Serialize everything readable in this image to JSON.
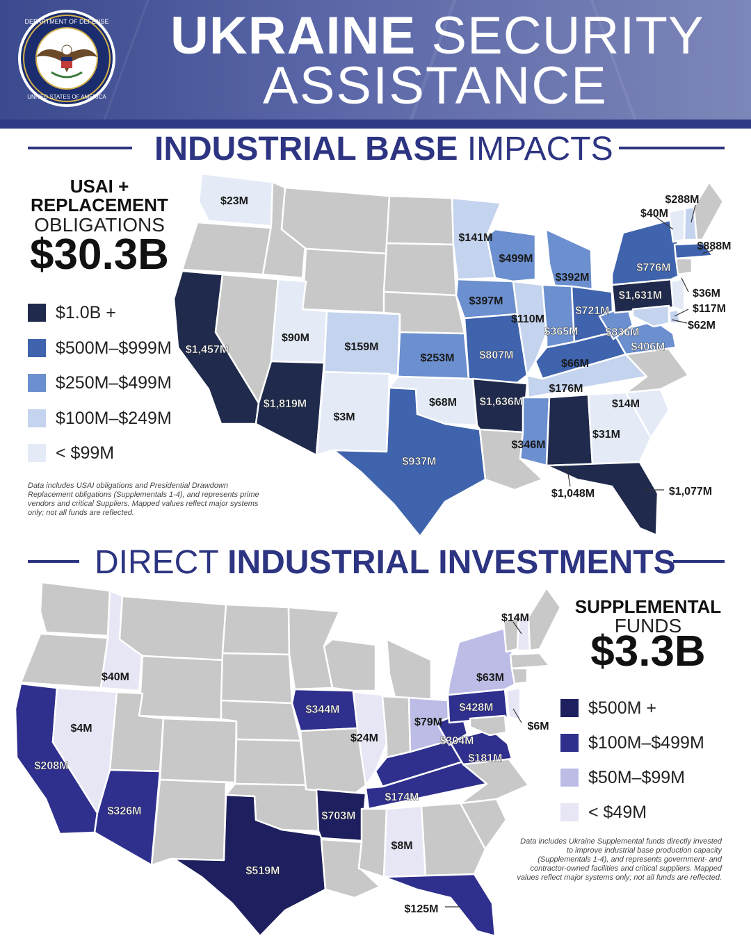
{
  "header": {
    "title_bold": "UKRAINE",
    "title_light": "SECURITY",
    "title_line2": "ASSISTANCE",
    "seal_text_top": "DEPARTMENT OF DEFENSE",
    "seal_text_bottom": "UNITED STATES OF AMERICA"
  },
  "section1": {
    "heading_bold": "INDUSTRIAL BASE",
    "heading_light": "IMPACTS",
    "total_line1": "USAI +",
    "total_line2": "REPLACEMENT",
    "total_line3": "OBLIGATIONS",
    "total_value": "$30.3B",
    "legend": [
      {
        "label": "$1.0B +",
        "color": "#1f2a4c"
      },
      {
        "label": "$500M–$999M",
        "color": "#3f63ad"
      },
      {
        "label": "$250M–$499M",
        "color": "#6b8fcf"
      },
      {
        "label": "$100M–$249M",
        "color": "#c4d3ee"
      },
      {
        "label": "< $99M",
        "color": "#e4ebf7"
      }
    ],
    "note": "Data includes USAI obligations and Presidential Drawdown Replacement obligations (Supplementals 1-4), and represents prime vendors and critical Suppliers. Mapped values reflect major systems only; not all funds are reflected.",
    "states": [
      {
        "label": "$23M"
      },
      {
        "label": "$1,457M"
      },
      {
        "label": "$90M"
      },
      {
        "label": "$1,819M"
      },
      {
        "label": "$159M"
      },
      {
        "label": "$3M"
      },
      {
        "label": "$253M"
      },
      {
        "label": "$68M"
      },
      {
        "label": "$937M"
      },
      {
        "label": "$141M"
      },
      {
        "label": "$397M"
      },
      {
        "label": "$807M"
      },
      {
        "label": "$1,636M"
      },
      {
        "label": "$499M"
      },
      {
        "label": "$110M"
      },
      {
        "label": "$346M"
      },
      {
        "label": "$392M"
      },
      {
        "label": "$365M"
      },
      {
        "label": "$1,048M"
      },
      {
        "label": "$176M"
      },
      {
        "label": "$66M"
      },
      {
        "label": "$721M"
      },
      {
        "label": "$1,077M"
      },
      {
        "label": "$31M"
      },
      {
        "label": "$14M"
      },
      {
        "label": "$836M"
      },
      {
        "label": "$406M"
      },
      {
        "label": "$1,631M"
      },
      {
        "label": "$776M"
      },
      {
        "label": "$40M"
      },
      {
        "label": "$288M"
      },
      {
        "label": "$888M"
      },
      {
        "label": "$36M"
      },
      {
        "label": "$117M"
      },
      {
        "label": "$62M"
      }
    ]
  },
  "section2": {
    "heading_light": "DIRECT",
    "heading_bold": "INDUSTRIAL INVESTMENTS",
    "total_line1": "SUPPLEMENTAL",
    "total_line2": "FUNDS",
    "total_value": "$3.3B",
    "legend": [
      {
        "label": "$500M +",
        "color": "#1d1f5e"
      },
      {
        "label": "$100M–$499M",
        "color": "#2f2f8e"
      },
      {
        "label": "$50M–$99M",
        "color": "#bcbce6"
      },
      {
        "label": "< $49M",
        "color": "#e6e6f5"
      }
    ],
    "note": "Data includes Ukraine Supplemental funds directly invested to improve industrial base production capacity (Supplementals 1-4), and represents government- and contractor-owned facilities and critical suppliers. Mapped values reflect major systems only; not all funds are reflected.",
    "states": [
      {
        "label": "$40M"
      },
      {
        "label": "$4M"
      },
      {
        "label": "$208M"
      },
      {
        "label": "$326M"
      },
      {
        "label": "$519M"
      },
      {
        "label": "$344M"
      },
      {
        "label": "$24M"
      },
      {
        "label": "$703M"
      },
      {
        "label": "$8M"
      },
      {
        "label": "$125M"
      },
      {
        "label": "$174M"
      },
      {
        "label": "$79M"
      },
      {
        "label": "$304M"
      },
      {
        "label": "$181M"
      },
      {
        "label": "$428M"
      },
      {
        "label": "$63M"
      },
      {
        "label": "$6M"
      },
      {
        "label": "$14M"
      }
    ]
  }
}
